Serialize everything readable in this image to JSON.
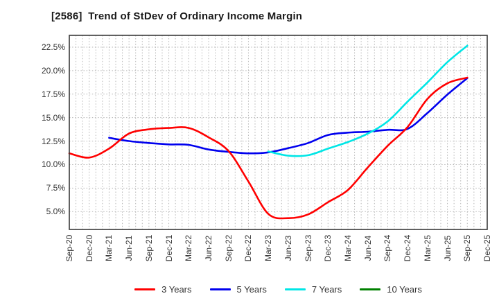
{
  "title": "[2586]  Trend of StDev of Ordinary Income Margin",
  "chart_data": {
    "type": "line",
    "title": "[2586]  Trend of StDev of Ordinary Income Margin",
    "x_categories": [
      "Sep-20",
      "Dec-20",
      "Mar-21",
      "Jun-21",
      "Sep-21",
      "Dec-21",
      "Mar-22",
      "Jun-22",
      "Sep-22",
      "Dec-22",
      "Mar-23",
      "Jun-23",
      "Sep-23",
      "Dec-23",
      "Mar-24",
      "Jun-24",
      "Sep-24",
      "Dec-24",
      "Mar-25",
      "Jun-25",
      "Sep-25",
      "Dec-25"
    ],
    "y_ticks": [
      {
        "value": 22.5,
        "label": "22.5%"
      },
      {
        "value": 20.0,
        "label": "20.0%"
      },
      {
        "value": 17.5,
        "label": "17.5%"
      },
      {
        "value": 15.0,
        "label": "15.0%"
      },
      {
        "value": 12.5,
        "label": "12.5%"
      },
      {
        "value": 10.0,
        "label": "10.0%"
      },
      {
        "value": 7.5,
        "label": "7.5%"
      },
      {
        "value": 5.0,
        "label": "5.0%"
      }
    ],
    "ylim": [
      3.1,
      23.75
    ],
    "grid": {
      "style": "dotted",
      "color": "#b5b5b5",
      "x_minor_per_quarter": 3
    },
    "spine_color": "#3a3a3a",
    "legend_position": "bottom-center",
    "series": [
      {
        "name": "3 Years",
        "color": "#ff0000",
        "values": [
          11.2,
          10.75,
          11.7,
          13.3,
          13.75,
          13.9,
          13.9,
          12.9,
          11.45,
          8.2,
          4.75,
          4.3,
          4.7,
          6.0,
          7.3,
          9.7,
          12.0,
          14.0,
          17.0,
          18.65,
          19.25,
          null
        ]
      },
      {
        "name": "5 Years",
        "color": "#0000ee",
        "values": [
          null,
          null,
          12.85,
          12.5,
          12.3,
          12.15,
          12.1,
          11.6,
          11.35,
          11.2,
          11.3,
          11.75,
          12.3,
          13.15,
          13.4,
          13.5,
          13.7,
          13.8,
          15.5,
          17.45,
          19.2,
          null
        ]
      },
      {
        "name": "7 Years",
        "color": "#00e6e6",
        "values": [
          null,
          null,
          null,
          null,
          null,
          null,
          null,
          null,
          null,
          null,
          11.4,
          10.95,
          11.0,
          11.7,
          12.4,
          13.3,
          14.6,
          16.7,
          18.75,
          20.9,
          22.65,
          null
        ]
      },
      {
        "name": "10 Years",
        "color": "#008000",
        "values": [
          null,
          null,
          null,
          null,
          null,
          null,
          null,
          null,
          null,
          null,
          null,
          null,
          null,
          null,
          null,
          null,
          null,
          null,
          null,
          null,
          null,
          null
        ]
      }
    ]
  }
}
